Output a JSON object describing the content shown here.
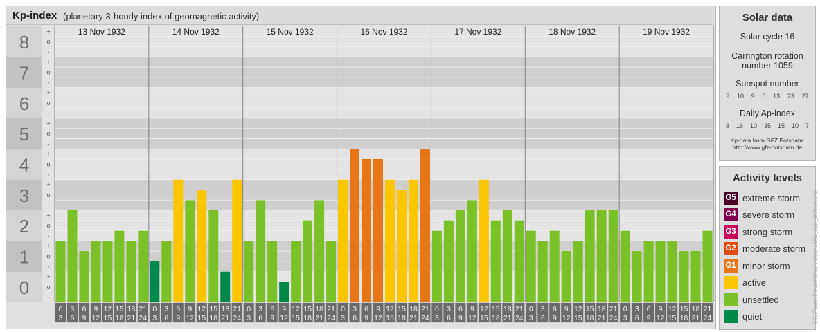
{
  "header": {
    "title": "Kp-index",
    "subtitle": "(planetary 3-hourly index of geomagnetic activity)"
  },
  "chart_data": {
    "type": "bar",
    "title": "Kp-index",
    "subtitle": "(planetary 3-hourly index of geomagnetic activity)",
    "ylim": [
      0,
      9
    ],
    "y_major_ticks": [
      "0",
      "1",
      "2",
      "3",
      "4",
      "5",
      "6",
      "7",
      "8",
      "9"
    ],
    "y_minor_labels": [
      "-",
      "o",
      "+"
    ],
    "days": [
      "13 Nov 1932",
      "14 Nov 1932",
      "15 Nov 1932",
      "16 Nov 1932",
      "17 Nov 1932",
      "18 Nov 1932",
      "19 Nov 1932"
    ],
    "interval_start_hours": [
      "0",
      "3",
      "6",
      "9",
      "12",
      "15",
      "18",
      "21"
    ],
    "interval_end_hours": [
      "3",
      "6",
      "9",
      "12",
      "15",
      "18",
      "21",
      "24"
    ],
    "values": [
      [
        2,
        3,
        1.67,
        2,
        2,
        2.33,
        2,
        2.33
      ],
      [
        1.33,
        2,
        4,
        3.33,
        3.67,
        3,
        1,
        4
      ],
      [
        2,
        3.33,
        2,
        0.67,
        2,
        2.67,
        3.33,
        2
      ],
      [
        4,
        5,
        4.67,
        4.67,
        4,
        3.67,
        4,
        5
      ],
      [
        2.33,
        2.67,
        3,
        3.33,
        4,
        2.67,
        3,
        2.67
      ],
      [
        2.33,
        2,
        2.33,
        1.67,
        2,
        3,
        3,
        3
      ],
      [
        2.33,
        1.67,
        2,
        2,
        2,
        1.67,
        1.67,
        2.33
      ]
    ],
    "bar_colors": [
      [
        "#7ac127",
        "#7ac127",
        "#7ac127",
        "#7ac127",
        "#7ac127",
        "#7ac127",
        "#7ac127",
        "#7ac127"
      ],
      [
        "#00884b",
        "#7ac127",
        "#fbc500",
        "#7ac127",
        "#fbc500",
        "#7ac127",
        "#00884b",
        "#fbc500"
      ],
      [
        "#7ac127",
        "#7ac127",
        "#7ac127",
        "#00884b",
        "#7ac127",
        "#7ac127",
        "#7ac127",
        "#7ac127"
      ],
      [
        "#fbc500",
        "#e67616",
        "#e67616",
        "#e67616",
        "#fbc500",
        "#fbc500",
        "#fbc500",
        "#e67616"
      ],
      [
        "#7ac127",
        "#7ac127",
        "#7ac127",
        "#7ac127",
        "#fbc500",
        "#7ac127",
        "#7ac127",
        "#7ac127"
      ],
      [
        "#7ac127",
        "#7ac127",
        "#7ac127",
        "#7ac127",
        "#7ac127",
        "#7ac127",
        "#7ac127",
        "#7ac127"
      ],
      [
        "#7ac127",
        "#7ac127",
        "#7ac127",
        "#7ac127",
        "#7ac127",
        "#7ac127",
        "#7ac127",
        "#7ac127"
      ]
    ],
    "grid": true
  },
  "solar": {
    "title": "Solar data",
    "cycle": "Solar cycle 16",
    "carrington_line1": "Carrington rotation",
    "carrington_line2": "number 1059",
    "sunspot_title": "Sunspot number",
    "sunspot_values": [
      "9",
      "10",
      "9",
      "0",
      "13",
      "23",
      "27"
    ],
    "ap_title": "Daily Ap-index",
    "ap_values": [
      "8",
      "16",
      "10",
      "35",
      "15",
      "10",
      "7"
    ],
    "credit_line1": "Kp-data from GFZ Potsdam:",
    "credit_line2": "http://www.gfz-potsdam.de"
  },
  "activity": {
    "title": "Activity levels",
    "levels": [
      {
        "code": "G5",
        "label": "extreme storm",
        "color": "#4b0024"
      },
      {
        "code": "G4",
        "label": "severe storm",
        "color": "#820050"
      },
      {
        "code": "G3",
        "label": "strong storm",
        "color": "#c8005a"
      },
      {
        "code": "G2",
        "label": "moderate storm",
        "color": "#e04c10"
      },
      {
        "code": "G1",
        "label": "minor storm",
        "color": "#e67616"
      },
      {
        "code": "",
        "label": "active",
        "color": "#fbc500"
      },
      {
        "code": "",
        "label": "unsettled",
        "color": "#7ac127"
      },
      {
        "code": "",
        "label": "quiet",
        "color": "#00884b"
      }
    ]
  },
  "side_credit": "http://www.theusenetvurvorgaru.alec_sgo_archive.php"
}
